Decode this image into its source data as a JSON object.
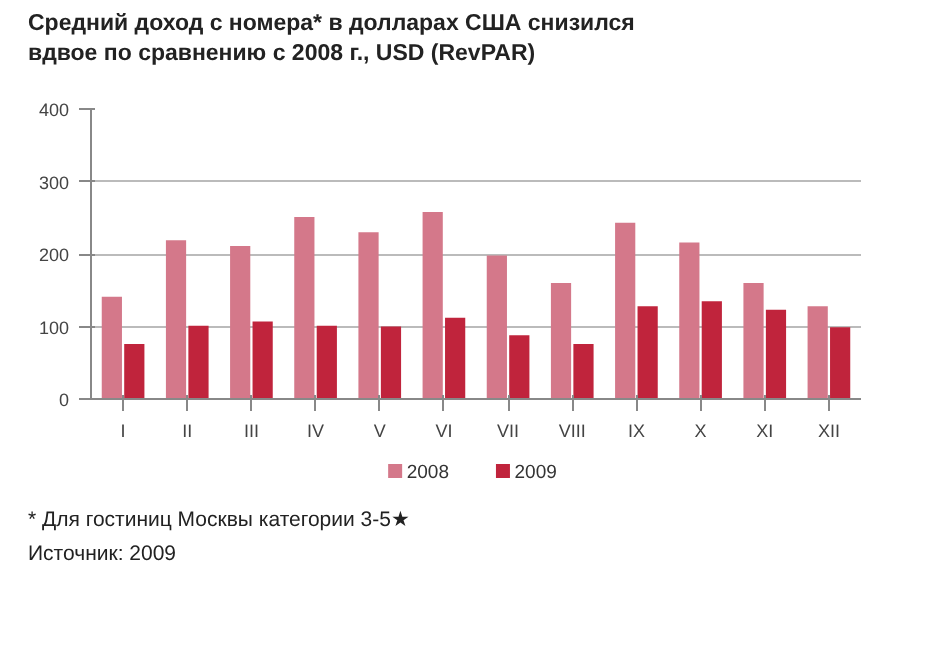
{
  "chart_data": {
    "type": "bar",
    "title": "Средний доход с номера* в долларах США снизился\nвдвое по сравнению с 2008 г., USD (RevPAR)",
    "categories": [
      "I",
      "II",
      "III",
      "IV",
      "V",
      "VI",
      "VII",
      "VIII",
      "IX",
      "X",
      "XI",
      "XII"
    ],
    "series": [
      {
        "name": "2008",
        "color": "#d4788a",
        "values": [
          141,
          219,
          211,
          251,
          230,
          258,
          198,
          160,
          243,
          216,
          160,
          128
        ]
      },
      {
        "name": "2009",
        "color": "#c0243c",
        "values": [
          76,
          101,
          107,
          101,
          100,
          112,
          88,
          76,
          128,
          135,
          123,
          99
        ]
      }
    ],
    "ylim": [
      0,
      400
    ],
    "yticks": [
      0,
      100,
      200,
      300,
      400
    ],
    "grid": "y",
    "legend": "bottom",
    "annotations": [
      "* Для гостиниц Москвы категории 3-5★",
      "Источник: 2009"
    ]
  }
}
